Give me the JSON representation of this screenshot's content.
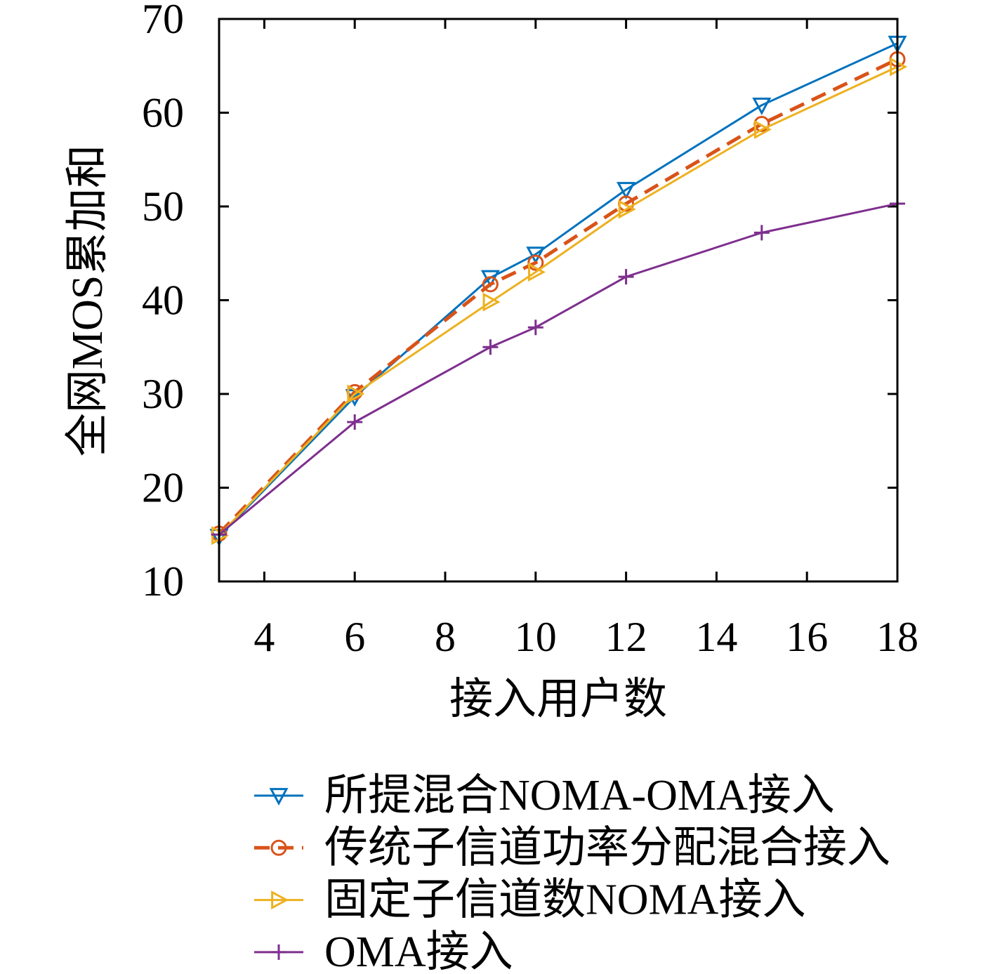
{
  "chart_data": {
    "type": "line",
    "x": [
      3,
      6,
      9,
      10,
      12,
      15,
      18
    ],
    "series": [
      {
        "name": "所提混合NOMA-OMA接入",
        "values": [
          14.8,
          29.7,
          42.4,
          44.9,
          51.8,
          60.8,
          67.4
        ],
        "color": "#0072BD",
        "marker": "triangle-down",
        "line": "solid"
      },
      {
        "name": "传统子信道功率分配混合接入",
        "values": [
          15.1,
          30.2,
          41.7,
          44.0,
          50.3,
          58.8,
          65.7
        ],
        "color": "#D95319",
        "marker": "circle",
        "line": "dashed"
      },
      {
        "name": "固定子信道数NOMA接入",
        "values": [
          14.9,
          30.0,
          39.8,
          43.0,
          49.7,
          58.2,
          64.9
        ],
        "color": "#EDB120",
        "marker": "triangle-right",
        "line": "solid"
      },
      {
        "name": "OMA接入",
        "values": [
          15.0,
          27.0,
          35.0,
          37.1,
          42.5,
          47.2,
          50.3
        ],
        "color": "#7E2F8E",
        "marker": "plus",
        "line": "solid"
      }
    ],
    "xlabel": "接入用户数",
    "ylabel": "全网MOS累加和",
    "xlim": [
      3,
      18
    ],
    "ylim": [
      10,
      70
    ],
    "xticks": [
      4,
      6,
      8,
      10,
      12,
      14,
      16,
      18
    ],
    "yticks": [
      10,
      20,
      30,
      40,
      50,
      60,
      70
    ],
    "grid": false,
    "legend": "below"
  }
}
